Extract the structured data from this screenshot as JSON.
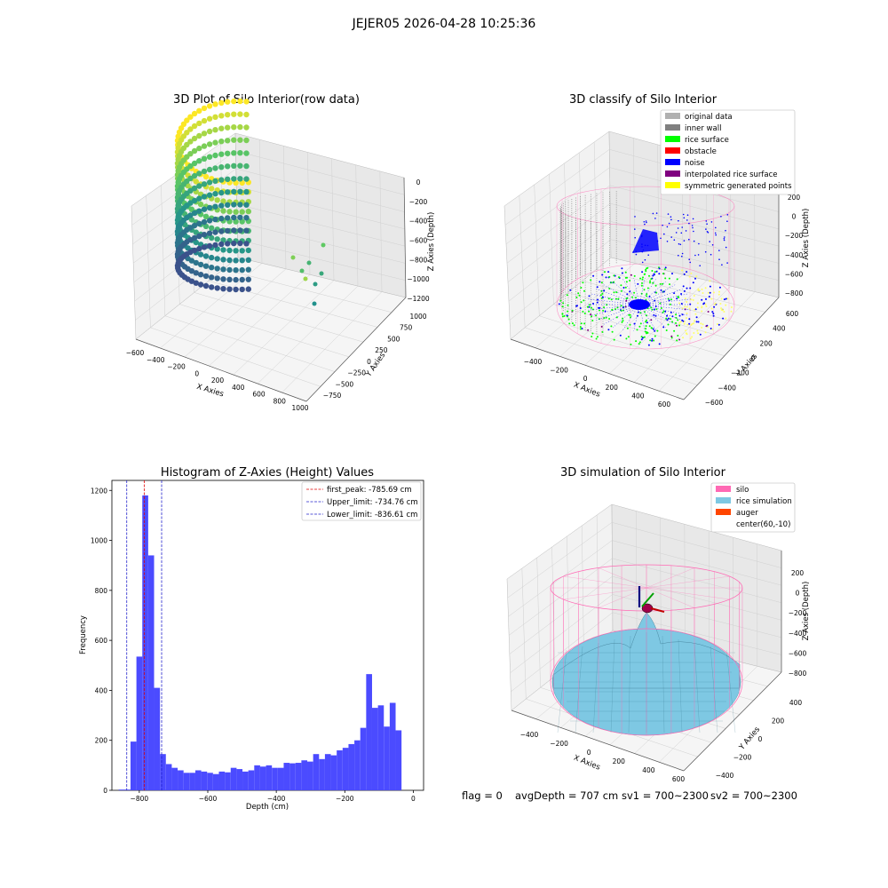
{
  "figure": {
    "suptitle": "JEJER05 2026-04-28 10:25:36",
    "footer": {
      "flag": "flag = 0",
      "avg_depth": "avgDepth = 707 cm",
      "sv1": "sv1 = 700~2300",
      "sv2": "sv2 = 700~2300"
    }
  },
  "colors": {
    "hist_bar": "#4b4bff",
    "first_peak": "#e00000",
    "limit_lines": "#2222cc",
    "pane": "#f2f2f2",
    "pane_dark": "#e8e8e8",
    "grid": "#d0d0d0",
    "silo": "#ff69b4",
    "rice": "#7ec8e3",
    "auger": "#ff4500"
  },
  "chart_data": [
    {
      "type": "scatter",
      "projection": "3d",
      "title": "3D Plot of Silo Interior(row data)",
      "xlabel": "X Axies",
      "ylabel": "Y Axies",
      "zlabel": "Z Axies (Depth)",
      "x_ticks": [
        "−600",
        "−400",
        "−200",
        "0",
        "200",
        "400",
        "600",
        "800",
        "1000"
      ],
      "y_ticks": [
        "−750",
        "−500",
        "−250",
        "0",
        "250",
        "500",
        "750",
        "1000"
      ],
      "z_ticks": [
        "0",
        "−200",
        "−400",
        "−600",
        "−800",
        "−1000",
        "−1200"
      ],
      "xlim": [
        -600,
        1000
      ],
      "ylim": [
        -750,
        1000
      ],
      "zlim": [
        -1200,
        0
      ],
      "colormap": "viridis",
      "description_of_points": "vertical wall scan lines on a half-cylinder of radius ~420 cm, depth 0 to -800"
    },
    {
      "type": "scatter",
      "projection": "3d",
      "title": "3D classify of Silo Interior",
      "xlabel": "X Axies",
      "ylabel": "Y Axies",
      "zlabel": "Z Axies (Depth)",
      "x_ticks": [
        "−400",
        "−200",
        "0",
        "200",
        "400",
        "600"
      ],
      "y_ticks": [
        "−600",
        "−400",
        "−200",
        "0",
        "200",
        "400",
        "600"
      ],
      "z_ticks": [
        "200",
        "0",
        "−200",
        "−400",
        "−600",
        "−800"
      ],
      "xlim": [
        -500,
        650
      ],
      "ylim": [
        -650,
        650
      ],
      "zlim": [
        -850,
        250
      ],
      "legend_placement": "top-right",
      "legend": [
        {
          "label": "original data",
          "color": "#b0b0b0"
        },
        {
          "label": "inner wall",
          "color": "#808080"
        },
        {
          "label": "rice surface",
          "color": "#00ff00"
        },
        {
          "label": "obstacle",
          "color": "#ff0000"
        },
        {
          "label": "noise",
          "color": "#0000ff"
        },
        {
          "label": "interpolated rice surface",
          "color": "#800080"
        },
        {
          "label": "symmetric generated points",
          "color": "#ffff00"
        }
      ]
    },
    {
      "type": "bar",
      "title": "Histogram of Z-Axies (Height) Values",
      "xlabel": "Depth (cm)",
      "ylabel": "Frequency",
      "xlim": [
        -880,
        30
      ],
      "ylim": [
        0,
        1240
      ],
      "x_ticks": [
        -800,
        -600,
        -400,
        -200,
        0
      ],
      "x_tick_labels": [
        "−800",
        "−600",
        "−400",
        "−200",
        "0"
      ],
      "y_ticks": [
        0,
        200,
        400,
        600,
        800,
        1000,
        1200
      ],
      "y_tick_labels": [
        "0",
        "200",
        "400",
        "600",
        "800",
        "1000",
        "1200"
      ],
      "bin_start": -860,
      "bin_width": 17.2,
      "values": [
        3,
        3,
        195,
        535,
        1180,
        940,
        410,
        145,
        105,
        90,
        80,
        70,
        70,
        80,
        75,
        70,
        65,
        75,
        72,
        90,
        85,
        75,
        80,
        100,
        95,
        100,
        90,
        90,
        110,
        108,
        110,
        120,
        115,
        145,
        125,
        145,
        140,
        160,
        170,
        185,
        200,
        250,
        465,
        330,
        340,
        255,
        350,
        240
      ],
      "vlines": [
        {
          "x": -785.69,
          "label": "first_peak: -785.69 cm",
          "style": "first_peak"
        },
        {
          "x": -734.76,
          "label": "Upper_limit: -734.76 cm",
          "style": "limit"
        },
        {
          "x": -836.61,
          "label": "Lower_limit: -836.61 cm",
          "style": "limit"
        }
      ],
      "legend_placement": "top-right"
    },
    {
      "type": "surface",
      "projection": "3d",
      "title": "3D simulation of Silo Interior",
      "xlabel": "X Axies",
      "ylabel": "Y Axies",
      "zlabel": "Z Axies (Depth)",
      "x_ticks": [
        "−400",
        "−200",
        "0",
        "200",
        "400",
        "600"
      ],
      "y_ticks": [
        "−400",
        "−200",
        "0",
        "200",
        "400"
      ],
      "z_ticks": [
        "200",
        "0",
        "−200",
        "−400",
        "−600",
        "−800"
      ],
      "xlim": [
        -500,
        650
      ],
      "ylim": [
        -500,
        500
      ],
      "zlim": [
        -850,
        350
      ],
      "legend_placement": "top-right",
      "legend": [
        {
          "label": "silo",
          "color": "#ff69b4"
        },
        {
          "label": "rice simulation",
          "color": "#7ec8e3"
        },
        {
          "label": "auger",
          "color": "#ff4500"
        },
        {
          "label": "center(60,-10)",
          "color": ""
        }
      ]
    }
  ]
}
